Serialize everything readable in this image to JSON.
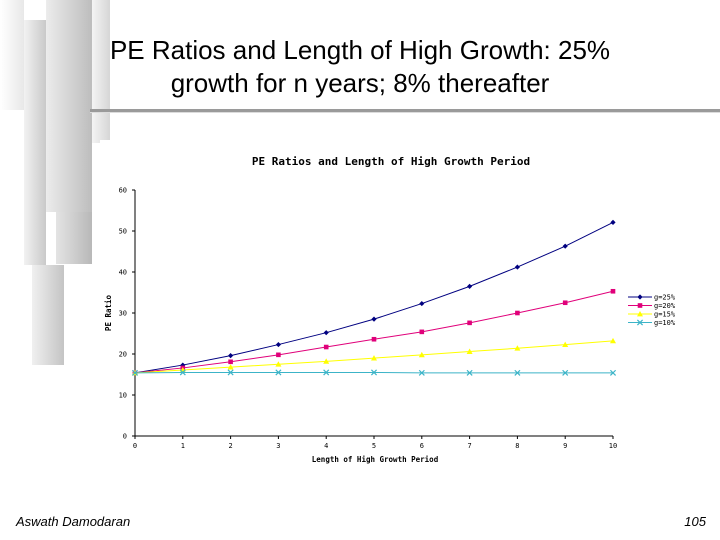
{
  "slide": {
    "title_line1": "PE Ratios and Length of High Growth: 25%",
    "title_line2": "growth for n years; 8% thereafter",
    "footer_author": "Aswath Damodaran",
    "page_number": "105"
  },
  "chart_data": {
    "type": "line",
    "title": "PE Ratios and Length of High Growth Period",
    "xlabel": "Length of High Growth Period",
    "ylabel": "PE Ratio",
    "x": [
      0,
      1,
      2,
      3,
      4,
      5,
      6,
      7,
      8,
      9,
      10
    ],
    "xlim": [
      0,
      10
    ],
    "ylim": [
      0,
      60
    ],
    "yticks": [
      0,
      10,
      20,
      30,
      40,
      50,
      60
    ],
    "grid": false,
    "legend_position": "right",
    "series": [
      {
        "name": "g=25%",
        "color": "#000080",
        "marker": "diamond",
        "values": [
          15.4,
          17.3,
          19.6,
          22.3,
          25.2,
          28.5,
          32.3,
          36.5,
          41.2,
          46.3,
          52.1
        ]
      },
      {
        "name": "g=20%",
        "color": "#e0007a",
        "marker": "square",
        "values": [
          15.4,
          16.6,
          18.1,
          19.8,
          21.7,
          23.6,
          25.4,
          27.6,
          30.0,
          32.5,
          35.3
        ]
      },
      {
        "name": "g=15%",
        "color": "#ffff00",
        "marker": "triangle",
        "values": [
          15.4,
          16.1,
          16.8,
          17.5,
          18.2,
          19.0,
          19.8,
          20.6,
          21.4,
          22.3,
          23.2
        ]
      },
      {
        "name": "g=10%",
        "color": "#3cb4c8",
        "marker": "x",
        "values": [
          15.4,
          15.5,
          15.5,
          15.5,
          15.5,
          15.5,
          15.4,
          15.4,
          15.4,
          15.4,
          15.4
        ]
      }
    ]
  }
}
